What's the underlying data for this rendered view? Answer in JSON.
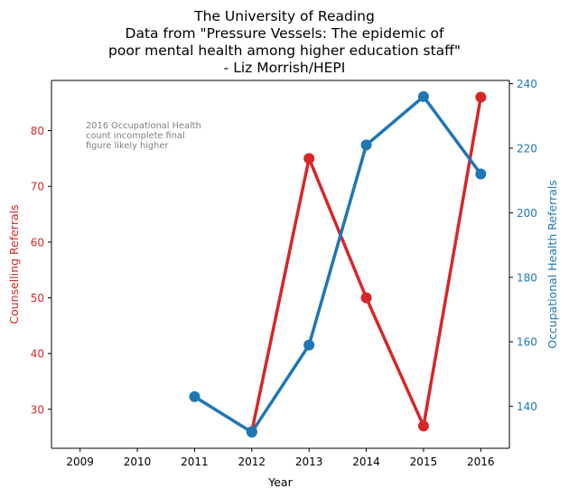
{
  "chart_data": {
    "type": "line",
    "title": [
      "The University of Reading",
      "Data from \"Pressure Vessels: The epidemic of",
      "poor mental health among higher education staff\"",
      "- Liz Morrish/HEPI"
    ],
    "xlabel": "Year",
    "x_ticks": [
      "2009",
      "2010",
      "2011",
      "2012",
      "2013",
      "2014",
      "2015",
      "2016"
    ],
    "xlim": [
      2008.5,
      2016.5
    ],
    "left_axis": {
      "label": "Counselling Referrals",
      "color": "#d62728",
      "ylim": [
        23,
        89
      ],
      "ticks": [
        30,
        40,
        50,
        60,
        70,
        80
      ]
    },
    "right_axis": {
      "label": "Occupational Health Referrals",
      "color": "#1f77b4",
      "ylim": [
        127,
        241
      ],
      "ticks": [
        140,
        160,
        180,
        200,
        220,
        240
      ]
    },
    "series": [
      {
        "axis": "left",
        "color": "#d62728",
        "x": [
          2012,
          2013,
          2014,
          2015,
          2016
        ],
        "values": [
          26,
          75,
          50,
          27,
          86
        ]
      },
      {
        "axis": "right",
        "color": "#1f77b4",
        "x": [
          2011,
          2012,
          2013,
          2014,
          2015,
          2016
        ],
        "values": [
          143,
          132,
          159,
          221,
          236,
          212
        ]
      }
    ],
    "annotation": [
      "2016 Occupational Health",
      "count incomplete final",
      "figure likely higher"
    ],
    "grid": false
  }
}
